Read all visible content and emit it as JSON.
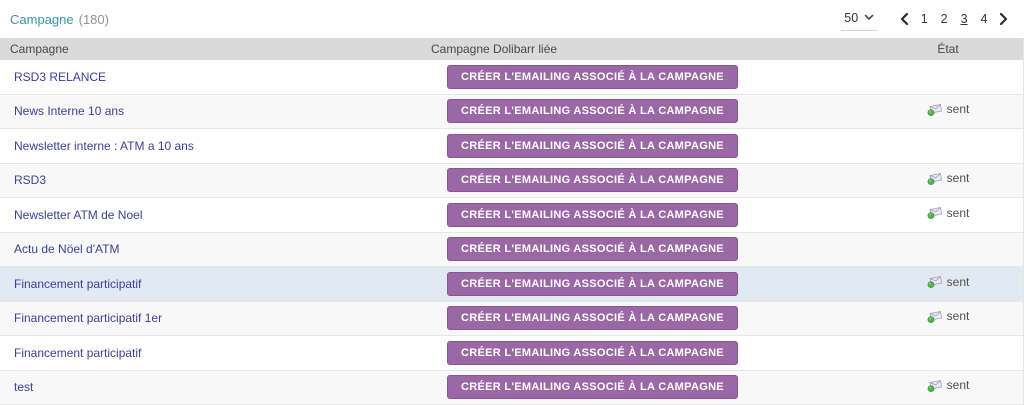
{
  "header": {
    "title": "Campagne",
    "count": "(180)"
  },
  "pagination": {
    "page_size": "50",
    "pages": [
      "1",
      "2",
      "3",
      "4"
    ],
    "current_page": "3",
    "icons": {
      "page_size_caret": "chevron-down-icon",
      "prev": "chevron-left-icon",
      "next": "chevron-right-icon"
    }
  },
  "table": {
    "columns": [
      "Campagne",
      "Campagne Dolibarr liée",
      "État"
    ],
    "create_button_label": "CRÉER L'EMAILING ASSOCIÉ À LA CAMPAGNE",
    "status_icon": "email-sent-icon",
    "rows": [
      {
        "campagne": "RSD3 RELANCE",
        "etat": ""
      },
      {
        "campagne": "News Interne 10 ans",
        "etat": "sent"
      },
      {
        "campagne": "Newsletter interne : ATM a 10 ans",
        "etat": ""
      },
      {
        "campagne": "RSD3",
        "etat": "sent"
      },
      {
        "campagne": "Newsletter ATM de Noel",
        "etat": "sent"
      },
      {
        "campagne": "Actu de Nöel d'ATM",
        "etat": ""
      },
      {
        "campagne": "Financement participatif",
        "etat": "sent",
        "highlighted": true
      },
      {
        "campagne": "Financement participatif 1er",
        "etat": "sent"
      },
      {
        "campagne": "Financement participatif",
        "etat": ""
      },
      {
        "campagne": "test",
        "etat": "sent"
      }
    ]
  },
  "colors": {
    "accent_purple": "#9a68a4",
    "accent_purple_border": "#875693",
    "title_teal": "#3795a8",
    "link_navy": "#3e4095",
    "row_highlight": "#e1e9f3",
    "row_alternate": "#f8f8f8",
    "header_gray": "#dadada",
    "status_green": "#52b152"
  }
}
